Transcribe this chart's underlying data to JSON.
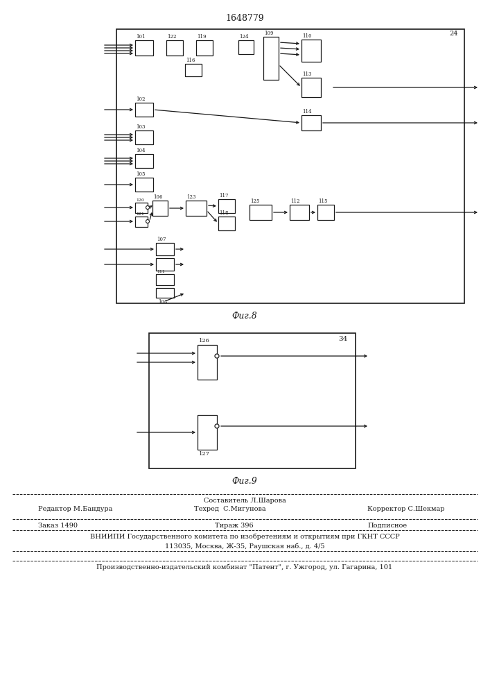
{
  "title": "1648779",
  "fig8_label": "Фиг.8",
  "fig9_label": "Фиг.9",
  "bg_color": "#ffffff",
  "line_color": "#1a1a1a",
  "footer": {
    "line1_center": "Составитель Л.Шарова",
    "line2_left": "Редактор М.Бандура",
    "line2_center": "Техред  С.Мигунова",
    "line2_right": "Корректор С.Шекмар",
    "line3_left": "Заказ 1490",
    "line3_center": "Тираж 396",
    "line3_right": "Подписное",
    "line4": "ВНИИПИ Государственного комитета по изобретениям и открытиям при ГКНТ СССР",
    "line5": "113035, Москва, Ж-35, Раушская наб., д. 4/5",
    "line6": "Производственно-издательский комбинат \"Патент\", г. Ужгород, ул. Гагарина, 101"
  }
}
